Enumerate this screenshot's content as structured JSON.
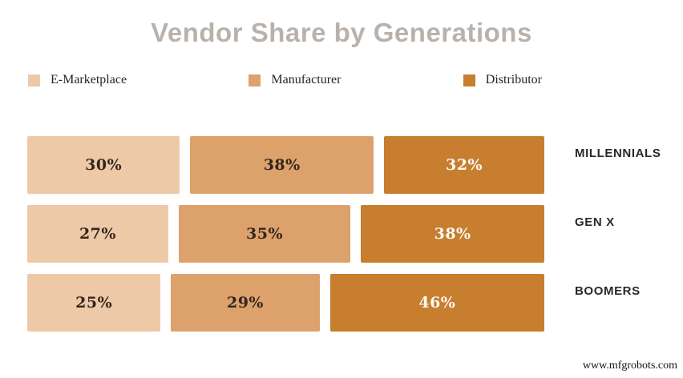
{
  "page": {
    "background": "#ffffff",
    "watermark": "www.mfgrobots.com"
  },
  "chart_data": {
    "type": "bar",
    "variant": "horizontal-100pct-stacked",
    "title": "Vendor Share by Generations",
    "title_color": "#b9b2ac",
    "legend_position": "top-left-row",
    "axis": "none",
    "grid": false,
    "value_suffix": "%",
    "categories": [
      "MILLENNIALS",
      "GEN X",
      "BOOMERS"
    ],
    "series": [
      {
        "name": "E-Marketplace",
        "color": "#eec9a8",
        "label_color": "#33261d",
        "values": [
          30,
          27,
          25
        ]
      },
      {
        "name": "Manufacturer",
        "color": "#dda26c",
        "label_color": "#33261d",
        "values": [
          38,
          35,
          29
        ]
      },
      {
        "name": "Distributor",
        "color": "#c77e2f",
        "label_color": "#fdfaf5",
        "values": [
          32,
          38,
          46
        ]
      }
    ]
  }
}
